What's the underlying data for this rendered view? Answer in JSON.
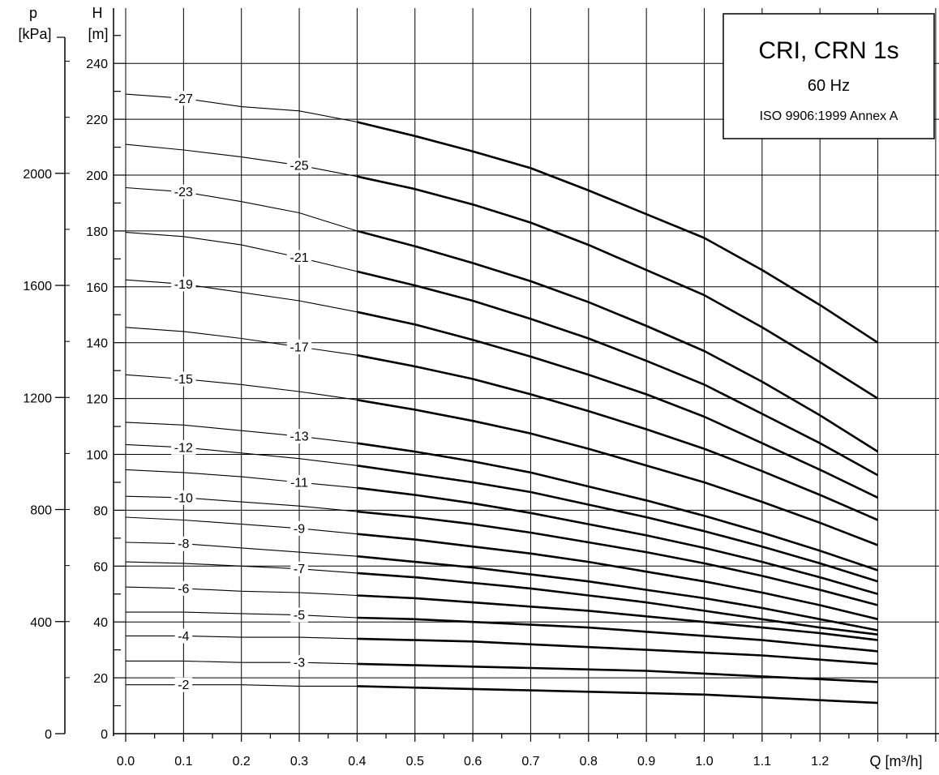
{
  "title_box": {
    "title": "CRI, CRN 1s",
    "frequency": "60 Hz",
    "standard": "ISO 9906:1999 Annex A"
  },
  "axes": {
    "left_title_symbol": "p",
    "left_title_unit": "[kPa]",
    "h_title_symbol": "H",
    "h_title_unit": "[m]",
    "x_title": "Q [m³/h]"
  },
  "chart_data": {
    "type": "line",
    "title": "CRI, CRN 1s",
    "subtitle": "60 Hz",
    "annotation": "ISO 9906:1999 Annex A",
    "xlabel": "Q [m³/h]",
    "ylabel": "H [m]",
    "secondary_ylabel": "p [kPa]",
    "xlim": [
      0,
      1.4
    ],
    "ylim": [
      0,
      250
    ],
    "secondary_ylim": [
      0,
      2450
    ],
    "x_ticks": [
      0,
      0.1,
      0.2,
      0.3,
      0.4,
      0.5,
      0.6,
      0.7,
      0.8,
      0.9,
      1.0,
      1.1,
      1.2
    ],
    "x_tick_labels": [
      "0.0",
      "0.1",
      "0.2",
      "0.3",
      "0.4",
      "0.5",
      "0.6",
      "0.7",
      "0.8",
      "0.9",
      "1.0",
      "1.1",
      "1.2"
    ],
    "y_ticks": [
      0,
      20,
      40,
      60,
      80,
      100,
      120,
      140,
      160,
      180,
      200,
      220,
      240
    ],
    "secondary_y_ticks": [
      0,
      400,
      800,
      1200,
      1600,
      2000
    ],
    "grid": true,
    "operating_range": [
      0.4,
      1.0
    ],
    "x": [
      0,
      0.1,
      0.2,
      0.3,
      0.4,
      0.5,
      0.6,
      0.7,
      0.8,
      0.9,
      1.0,
      1.1,
      1.2,
      1.3
    ],
    "series": [
      {
        "name": "-27",
        "label_x": 0.1,
        "values": [
          229,
          227.5,
          224.5,
          223,
          219,
          214,
          208.5,
          202.5,
          194.5,
          186,
          177.5,
          166,
          153.5,
          140
        ]
      },
      {
        "name": "-25",
        "label_x": 0.3,
        "values": [
          211,
          209,
          206.5,
          203.5,
          199.5,
          195,
          189.5,
          183,
          175,
          166,
          157,
          145.5,
          133,
          120
        ]
      },
      {
        "name": "-23",
        "label_x": 0.1,
        "values": [
          195.5,
          194,
          190.5,
          186.5,
          180,
          174.5,
          168.5,
          162,
          154.5,
          146,
          137,
          126,
          114,
          101
        ]
      },
      {
        "name": "-21",
        "label_x": 0.3,
        "values": [
          179.5,
          178,
          175,
          170.5,
          165.5,
          160.5,
          155,
          148.5,
          141.5,
          133.5,
          125,
          114.5,
          104,
          92.5
        ]
      },
      {
        "name": "-19",
        "label_x": 0.1,
        "values": [
          162.5,
          161,
          158,
          155,
          151,
          146.5,
          141,
          135,
          128.5,
          121.5,
          113.5,
          104,
          94.5,
          84.5
        ]
      },
      {
        "name": "-17",
        "label_x": 0.3,
        "values": [
          145.5,
          144,
          141.5,
          138.5,
          135.5,
          131.5,
          127,
          121.5,
          115.5,
          109,
          102,
          94,
          85.5,
          76.5
        ]
      },
      {
        "name": "-15",
        "label_x": 0.1,
        "values": [
          128.5,
          127,
          125,
          122.5,
          119.5,
          116,
          112,
          107.5,
          102,
          96,
          90,
          83,
          75.5,
          67.5
        ]
      },
      {
        "name": "-13",
        "label_x": 0.3,
        "values": [
          111.5,
          110.5,
          108.5,
          106.5,
          104,
          101,
          97.5,
          93.5,
          88.5,
          83.5,
          78,
          72,
          65.5,
          58.5
        ]
      },
      {
        "name": "-12",
        "label_x": 0.1,
        "values": [
          103.5,
          102.5,
          100.5,
          98.5,
          96,
          93,
          90,
          86.5,
          82,
          77.5,
          72.5,
          67,
          61,
          54.5
        ]
      },
      {
        "name": "-11",
        "label_x": 0.3,
        "values": [
          94.5,
          93.5,
          92,
          90,
          88,
          85.5,
          82.5,
          79,
          75,
          71,
          66.5,
          61.5,
          56,
          50
        ]
      },
      {
        "name": "-10",
        "label_x": 0.1,
        "values": [
          85,
          84.5,
          83,
          81.5,
          79.5,
          77.5,
          75,
          72,
          68.5,
          65,
          61,
          56.5,
          51.5,
          46
        ]
      },
      {
        "name": "-9",
        "label_x": 0.3,
        "values": [
          77.5,
          76.5,
          75,
          73.5,
          71.5,
          69.5,
          67,
          64.5,
          61.5,
          58,
          54.5,
          50.5,
          46,
          41
        ]
      },
      {
        "name": "-8",
        "label_x": 0.1,
        "values": [
          68.5,
          68,
          66.5,
          65,
          63.5,
          61.5,
          59.5,
          57,
          54.5,
          51.5,
          48.5,
          45,
          41,
          37
        ]
      },
      {
        "name": "-7",
        "label_x": 0.3,
        "values": [
          61.5,
          61,
          60,
          59,
          57.5,
          56,
          54,
          52,
          49.5,
          47,
          44,
          41,
          38,
          35.5
        ]
      },
      {
        "name": "-6",
        "label_x": 0.1,
        "values": [
          52.5,
          52,
          51,
          50.5,
          49.5,
          48.5,
          47,
          45.5,
          44,
          42,
          40,
          38,
          36,
          33.5
        ]
      },
      {
        "name": "-5",
        "label_x": 0.3,
        "values": [
          43.5,
          43.5,
          43,
          42.5,
          41.5,
          41,
          40,
          39,
          38,
          36.5,
          35,
          33.5,
          31.5,
          29.5
        ]
      },
      {
        "name": "-4",
        "label_x": 0.1,
        "values": [
          35,
          35,
          34.5,
          34.5,
          34,
          33.5,
          33,
          32,
          31,
          30,
          29,
          28,
          26.5,
          25
        ]
      },
      {
        "name": "-3",
        "label_x": 0.3,
        "values": [
          26,
          26,
          25.5,
          25.5,
          25,
          24.5,
          24,
          23.5,
          23,
          22.5,
          21.5,
          20.5,
          19.5,
          18.5
        ]
      },
      {
        "name": "-2",
        "label_x": 0.1,
        "values": [
          17.5,
          17.5,
          17.5,
          17,
          17,
          16.5,
          16,
          15.5,
          15,
          14.5,
          14,
          13,
          12,
          11
        ]
      }
    ]
  }
}
